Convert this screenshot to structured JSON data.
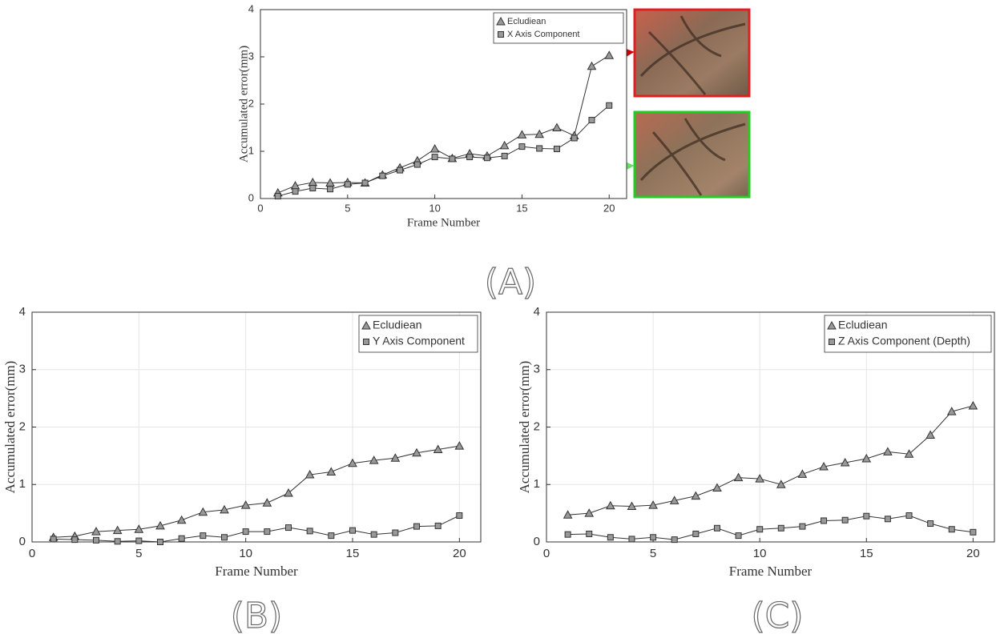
{
  "chart_data": [
    {
      "type": "line",
      "panel_label": "(A)",
      "x_label": "Frame Number",
      "y_label": "Accumulated error(mm)",
      "grid": false,
      "legend": "upper right",
      "x": [
        1,
        2,
        3,
        4,
        5,
        6,
        7,
        8,
        9,
        10,
        11,
        12,
        13,
        14,
        15,
        16,
        17,
        18,
        19,
        20
      ],
      "xlim": [
        0,
        21
      ],
      "xticks": [
        0,
        5,
        10,
        15,
        20
      ],
      "ylim": [
        0,
        4
      ],
      "yticks": [
        0,
        1,
        2,
        3,
        4
      ],
      "series": [
        {
          "name": "Ecludiean",
          "color": "#333333",
          "marker": "triangle",
          "values": [
            0.12,
            0.27,
            0.34,
            0.33,
            0.34,
            0.33,
            0.5,
            0.65,
            0.8,
            1.05,
            0.85,
            0.95,
            0.9,
            1.12,
            1.35,
            1.36,
            1.5,
            1.33,
            2.8,
            3.03
          ]
        },
        {
          "name": "X Axis Component",
          "color": "#333333",
          "marker": "square",
          "values": [
            0.05,
            0.15,
            0.22,
            0.2,
            0.3,
            0.33,
            0.48,
            0.6,
            0.72,
            0.88,
            0.84,
            0.88,
            0.86,
            0.9,
            1.1,
            1.06,
            1.05,
            1.28,
            1.66,
            1.97
          ]
        }
      ]
    },
    {
      "type": "line",
      "panel_label": "(B)",
      "x_label": "Frame Number",
      "y_label": "Accumulated error(mm)",
      "grid": true,
      "legend": "upper right",
      "x": [
        1,
        2,
        3,
        4,
        5,
        6,
        7,
        8,
        9,
        10,
        11,
        12,
        13,
        14,
        15,
        16,
        17,
        18,
        19,
        20
      ],
      "xlim": [
        0,
        21
      ],
      "xticks": [
        0,
        5,
        10,
        15,
        20
      ],
      "ylim": [
        0,
        4
      ],
      "yticks": [
        0,
        1,
        2,
        3,
        4
      ],
      "series": [
        {
          "name": "Ecludiean",
          "color": "#333333",
          "marker": "triangle",
          "values": [
            0.08,
            0.1,
            0.18,
            0.2,
            0.22,
            0.28,
            0.38,
            0.52,
            0.56,
            0.64,
            0.68,
            0.85,
            1.17,
            1.22,
            1.37,
            1.42,
            1.46,
            1.55,
            1.61,
            1.67
          ]
        },
        {
          "name": "Y Axis Component",
          "color": "#333333",
          "marker": "square",
          "values": [
            0.05,
            0.04,
            0.03,
            0.01,
            0.02,
            0,
            0.06,
            0.11,
            0.08,
            0.18,
            0.18,
            0.25,
            0.19,
            0.11,
            0.2,
            0.13,
            0.16,
            0.27,
            0.28,
            0.46
          ]
        }
      ]
    },
    {
      "type": "line",
      "panel_label": "(C)",
      "x_label": "Frame Number",
      "y_label": "Accumulated error(mm)",
      "grid": true,
      "legend": "upper right",
      "x": [
        1,
        2,
        3,
        4,
        5,
        6,
        7,
        8,
        9,
        10,
        11,
        12,
        13,
        14,
        15,
        16,
        17,
        18,
        19,
        20
      ],
      "xlim": [
        0,
        21
      ],
      "xticks": [
        0,
        5,
        10,
        15,
        20
      ],
      "ylim": [
        0,
        4
      ],
      "yticks": [
        0,
        1,
        2,
        3,
        4
      ],
      "series": [
        {
          "name": "Ecludiean",
          "color": "#333333",
          "marker": "triangle",
          "values": [
            0.47,
            0.5,
            0.63,
            0.62,
            0.64,
            0.72,
            0.8,
            0.94,
            1.12,
            1.1,
            1.0,
            1.18,
            1.31,
            1.38,
            1.45,
            1.57,
            1.53,
            1.86,
            2.27,
            2.37
          ]
        },
        {
          "name": "Z Axis Component (Depth)",
          "color": "#333333",
          "marker": "square",
          "values": [
            0.13,
            0.14,
            0.08,
            0.05,
            0.08,
            0.04,
            0.14,
            0.24,
            0.11,
            0.22,
            0.24,
            0.27,
            0.37,
            0.38,
            0.45,
            0.4,
            0.46,
            0.32,
            0.22,
            0.17
          ]
        }
      ]
    }
  ]
}
